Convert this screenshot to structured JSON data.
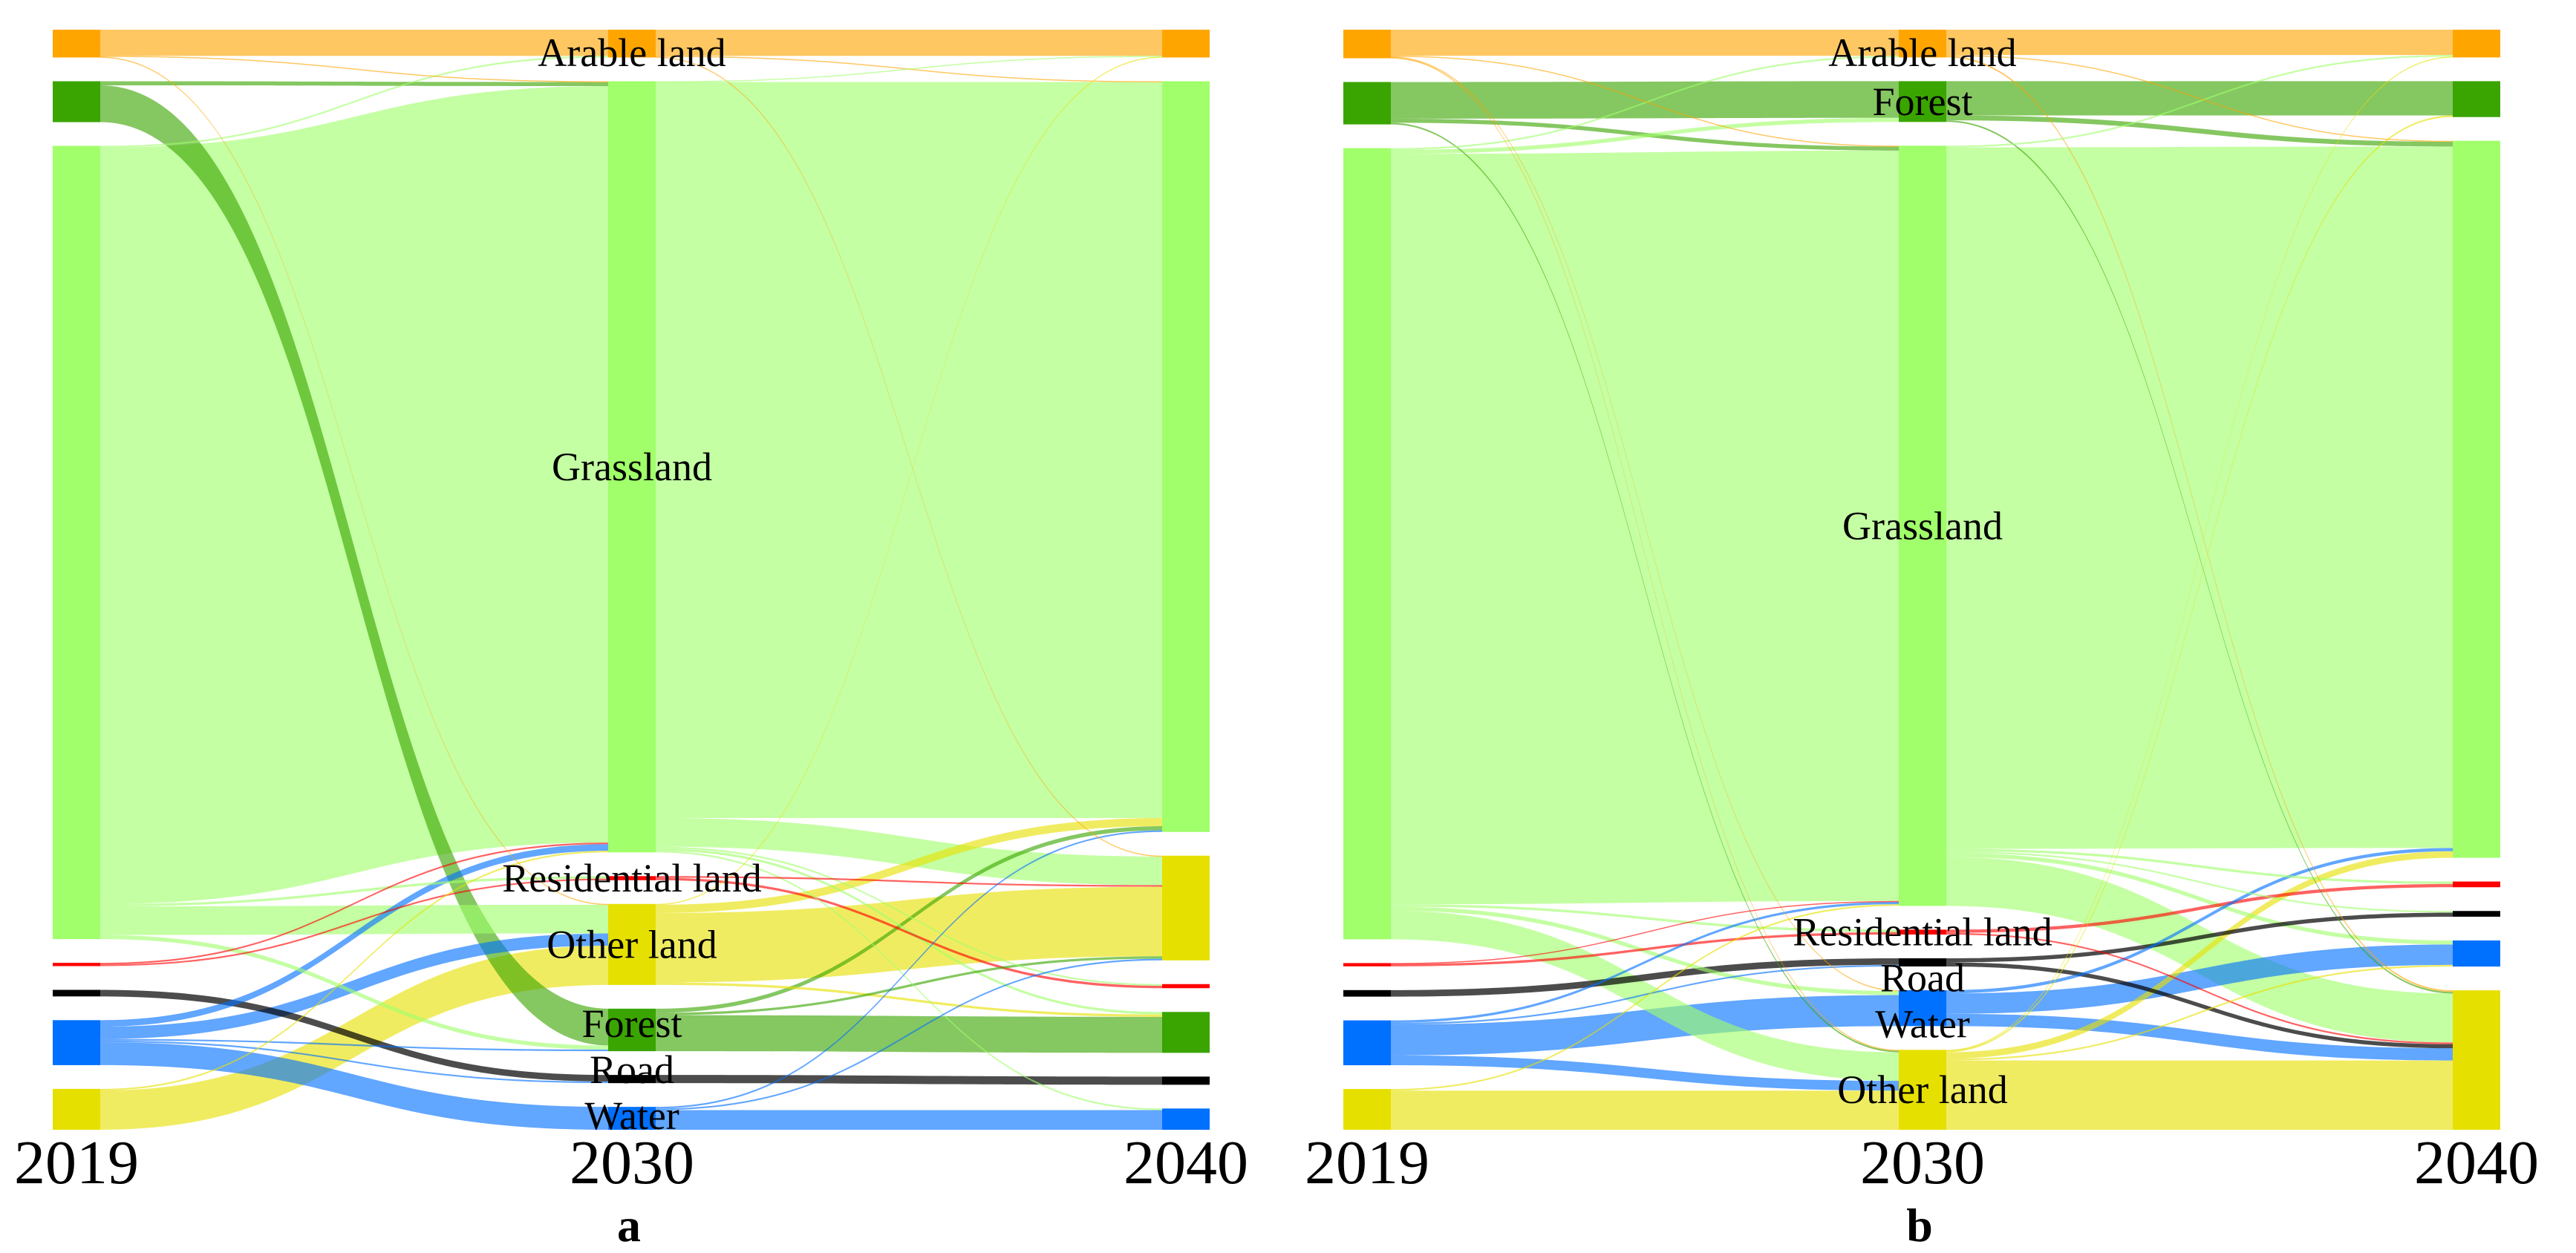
{
  "chart_data": [
    {
      "type": "sankey",
      "panel_label": "a",
      "columns": [
        "2019",
        "2030",
        "2040"
      ],
      "nodes": [
        {
          "id": "arable",
          "label": "Arable land",
          "color": "#FFA500"
        },
        {
          "id": "forest",
          "label": "Forest",
          "color": "#3AA500"
        },
        {
          "id": "grassland",
          "label": "Grassland",
          "color": "#A0FF6A"
        },
        {
          "id": "residential",
          "label": "Residential land",
          "color": "#FF0000"
        },
        {
          "id": "road",
          "label": "Road",
          "color": "#000000"
        },
        {
          "id": "water",
          "label": "Water",
          "color": "#0070FF"
        },
        {
          "id": "other",
          "label": "Other land",
          "color": "#E6E000"
        }
      ],
      "column_order": [
        [
          "arable",
          "forest",
          "grassland",
          "residential",
          "road",
          "water",
          "other"
        ],
        [
          "arable",
          "grassland",
          "residential",
          "other",
          "forest",
          "road",
          "water"
        ],
        [
          "arable",
          "grassland",
          "other",
          "residential",
          "forest",
          "road",
          "water"
        ]
      ],
      "links": [
        [
          0,
          "arable",
          "arable",
          32
        ],
        [
          0,
          "arable",
          "grassland",
          1
        ],
        [
          0,
          "arable",
          "other",
          1
        ],
        [
          0,
          "forest",
          "grassland",
          5
        ],
        [
          0,
          "forest",
          "forest",
          45
        ],
        [
          0,
          "grassland",
          "arable",
          2
        ],
        [
          0,
          "grassland",
          "grassland",
          925
        ],
        [
          0,
          "grassland",
          "residential",
          3
        ],
        [
          0,
          "grassland",
          "other",
          35
        ],
        [
          0,
          "grassland",
          "forest",
          5
        ],
        [
          0,
          "residential",
          "residential",
          2
        ],
        [
          0,
          "residential",
          "grassland",
          2
        ],
        [
          0,
          "road",
          "road",
          8
        ],
        [
          0,
          "water",
          "other",
          15
        ],
        [
          0,
          "water",
          "water",
          28
        ],
        [
          0,
          "water",
          "grassland",
          8
        ],
        [
          0,
          "water",
          "road",
          2
        ],
        [
          0,
          "water",
          "forest",
          2
        ],
        [
          0,
          "other",
          "other",
          48
        ],
        [
          0,
          "other",
          "grassland",
          2
        ],
        [
          1,
          "arable",
          "arable",
          32
        ],
        [
          1,
          "arable",
          "grassland",
          1
        ],
        [
          1,
          "arable",
          "other",
          1
        ],
        [
          1,
          "grassland",
          "grassland",
          900
        ],
        [
          1,
          "grassland",
          "other",
          35
        ],
        [
          1,
          "grassland",
          "arable",
          1
        ],
        [
          1,
          "grassland",
          "forest",
          3
        ],
        [
          1,
          "grassland",
          "water",
          2
        ],
        [
          1,
          "grassland",
          "residential",
          2
        ],
        [
          1,
          "residential",
          "residential",
          3
        ],
        [
          1,
          "residential",
          "other",
          2
        ],
        [
          1,
          "other",
          "other",
          85
        ],
        [
          1,
          "other",
          "grassland",
          10
        ],
        [
          1,
          "other",
          "arable",
          1
        ],
        [
          1,
          "other",
          "forest",
          3
        ],
        [
          1,
          "forest",
          "forest",
          44
        ],
        [
          1,
          "forest",
          "grassland",
          5
        ],
        [
          1,
          "forest",
          "other",
          3
        ],
        [
          1,
          "road",
          "road",
          10
        ],
        [
          1,
          "water",
          "water",
          24
        ],
        [
          1,
          "water",
          "grassland",
          2
        ],
        [
          1,
          "water",
          "other",
          2
        ]
      ]
    },
    {
      "type": "sankey",
      "panel_label": "b",
      "columns": [
        "2019",
        "2030",
        "2040"
      ],
      "nodes": [
        {
          "id": "arable",
          "label": "Arable land",
          "color": "#FFA500"
        },
        {
          "id": "forest",
          "label": "Forest",
          "color": "#3AA500"
        },
        {
          "id": "grassland",
          "label": "Grassland",
          "color": "#A0FF6A"
        },
        {
          "id": "residential",
          "label": "Residential land",
          "color": "#FF0000"
        },
        {
          "id": "road",
          "label": "Road",
          "color": "#000000"
        },
        {
          "id": "water",
          "label": "Water",
          "color": "#0070FF"
        },
        {
          "id": "other",
          "label": "Other land",
          "color": "#E6E000"
        }
      ],
      "column_order": [
        [
          "arable",
          "forest",
          "grassland",
          "residential",
          "road",
          "water",
          "other"
        ],
        [
          "arable",
          "forest",
          "grassland",
          "residential",
          "road",
          "water",
          "other"
        ],
        [
          "arable",
          "forest",
          "grassland",
          "residential",
          "road",
          "water",
          "other"
        ]
      ],
      "links": [
        [
          0,
          "arable",
          "arable",
          32
        ],
        [
          0,
          "arable",
          "grassland",
          1
        ],
        [
          0,
          "arable",
          "other",
          1
        ],
        [
          0,
          "arable",
          "water",
          1
        ],
        [
          0,
          "forest",
          "forest",
          45
        ],
        [
          0,
          "forest",
          "grassland",
          5
        ],
        [
          0,
          "forest",
          "other",
          2
        ],
        [
          0,
          "grassland",
          "grassland",
          920
        ],
        [
          0,
          "grassland",
          "arable",
          2
        ],
        [
          0,
          "grassland",
          "forest",
          5
        ],
        [
          0,
          "grassland",
          "residential",
          3
        ],
        [
          0,
          "grassland",
          "other",
          35
        ],
        [
          0,
          "grassland",
          "water",
          5
        ],
        [
          0,
          "residential",
          "residential",
          3
        ],
        [
          0,
          "residential",
          "grassland",
          1
        ],
        [
          0,
          "road",
          "road",
          8
        ],
        [
          0,
          "water",
          "water",
          38
        ],
        [
          0,
          "water",
          "other",
          12
        ],
        [
          0,
          "water",
          "grassland",
          3
        ],
        [
          0,
          "water",
          "road",
          2
        ],
        [
          0,
          "other",
          "other",
          48
        ],
        [
          0,
          "other",
          "grassland",
          2
        ],
        [
          1,
          "arable",
          "arable",
          31
        ],
        [
          1,
          "arable",
          "grassland",
          1
        ],
        [
          1,
          "arable",
          "other",
          2
        ],
        [
          1,
          "forest",
          "forest",
          42
        ],
        [
          1,
          "forest",
          "grassland",
          6
        ],
        [
          1,
          "forest",
          "other",
          2
        ],
        [
          1,
          "grassland",
          "grassland",
          860
        ],
        [
          1,
          "grassland",
          "other",
          60
        ],
        [
          1,
          "grassland",
          "residential",
          3
        ],
        [
          1,
          "grassland",
          "road",
          2
        ],
        [
          1,
          "grassland",
          "water",
          5
        ],
        [
          1,
          "grassland",
          "arable",
          2
        ],
        [
          1,
          "residential",
          "residential",
          4
        ],
        [
          1,
          "residential",
          "other",
          2
        ],
        [
          1,
          "road",
          "road",
          5
        ],
        [
          1,
          "road",
          "other",
          5
        ],
        [
          1,
          "water",
          "water",
          25
        ],
        [
          1,
          "water",
          "other",
          15
        ],
        [
          1,
          "water",
          "grassland",
          4
        ],
        [
          1,
          "other",
          "other",
          85
        ],
        [
          1,
          "other",
          "grassland",
          8
        ],
        [
          1,
          "other",
          "water",
          2
        ],
        [
          1,
          "other",
          "forest",
          2
        ],
        [
          1,
          "other",
          "arable",
          1
        ]
      ]
    }
  ]
}
